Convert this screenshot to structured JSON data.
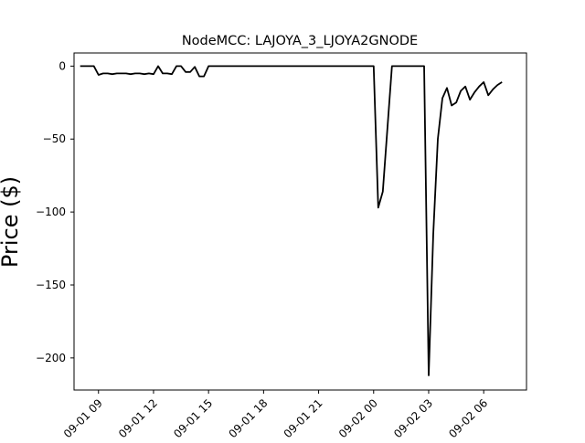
{
  "chart_data": {
    "type": "line",
    "title": "NodeMCC: LAJOYA_3_LJOYA2GNODE",
    "xlabel": "",
    "ylabel": "Price ($)",
    "xlim": [
      "2021-09-01 07:40",
      "2021-09-02 08:20"
    ],
    "ylim": [
      -222,
      9
    ],
    "grid": false,
    "legend": "none",
    "x_tick_labels": [
      "09-01 09",
      "09-01 12",
      "09-01 15",
      "09-01 18",
      "09-01 21",
      "09-02 00",
      "09-02 03",
      "09-02 06"
    ],
    "y_ticks": [
      0,
      -50,
      -100,
      -150,
      -200
    ],
    "y_tick_labels": [
      "0",
      "−50",
      "−100",
      "−150",
      "−200"
    ],
    "line_color": "#000000",
    "series": [
      {
        "x": [
          "2021-09-01 08:00",
          "2021-09-01 08:15",
          "2021-09-01 08:30",
          "2021-09-01 08:45",
          "2021-09-01 09:00",
          "2021-09-01 09:15",
          "2021-09-01 09:30",
          "2021-09-01 09:45",
          "2021-09-01 10:00",
          "2021-09-01 10:15",
          "2021-09-01 10:30",
          "2021-09-01 10:45",
          "2021-09-01 11:00",
          "2021-09-01 11:15",
          "2021-09-01 11:30",
          "2021-09-01 11:45",
          "2021-09-01 12:00",
          "2021-09-01 12:15",
          "2021-09-01 12:30",
          "2021-09-01 12:45",
          "2021-09-01 13:00",
          "2021-09-01 13:15",
          "2021-09-01 13:30",
          "2021-09-01 13:45",
          "2021-09-01 14:00",
          "2021-09-01 14:15",
          "2021-09-01 14:30",
          "2021-09-01 14:45",
          "2021-09-01 15:00",
          "2021-09-01 16:00",
          "2021-09-01 18:00",
          "2021-09-01 20:00",
          "2021-09-01 22:00",
          "2021-09-01 23:45",
          "2021-09-02 00:00",
          "2021-09-02 00:15",
          "2021-09-02 00:30",
          "2021-09-02 01:00",
          "2021-09-02 02:00",
          "2021-09-02 02:30",
          "2021-09-02 02:45",
          "2021-09-02 03:00",
          "2021-09-02 03:15",
          "2021-09-02 03:30",
          "2021-09-02 03:45",
          "2021-09-02 04:00",
          "2021-09-02 04:15",
          "2021-09-02 04:30",
          "2021-09-02 04:45",
          "2021-09-02 05:00",
          "2021-09-02 05:15",
          "2021-09-02 05:30",
          "2021-09-02 05:45",
          "2021-09-02 06:00",
          "2021-09-02 06:15",
          "2021-09-02 06:30",
          "2021-09-02 06:45",
          "2021-09-02 07:00"
        ],
        "y": [
          0,
          0,
          0,
          0,
          -6,
          -5,
          -5,
          -5.5,
          -5,
          -5,
          -5,
          -5.5,
          -5,
          -5,
          -5.5,
          -5,
          -5.5,
          0,
          -5,
          -5,
          -5.5,
          0,
          0,
          -4,
          -4,
          -0.5,
          -7,
          -7,
          0,
          0,
          0,
          0,
          0,
          0,
          0,
          -97,
          -86,
          0,
          0,
          0,
          0,
          -212,
          -115,
          -50,
          -22,
          -15,
          -27,
          -25,
          -17,
          -14,
          -23,
          -18,
          -14,
          -11,
          -20,
          -16,
          -13,
          -11
        ]
      }
    ]
  }
}
